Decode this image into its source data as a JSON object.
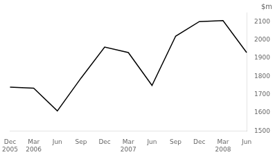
{
  "chart_data": {
    "type": "line",
    "ylabel": "$m",
    "categories": [
      "Dec\n2005",
      "Mar\n2006",
      "Jun",
      "Sep",
      "Dec",
      "Mar\n2007",
      "Jun",
      "Sep",
      "Dec",
      "Mar\n2008",
      "Jun"
    ],
    "values": [
      1740,
      1735,
      1610,
      1790,
      1960,
      1930,
      1750,
      2020,
      2100,
      2105,
      1930
    ],
    "color": "#000000",
    "ylim": [
      1500,
      2150
    ],
    "yticks": [
      1500,
      1600,
      1700,
      1800,
      1900,
      2000,
      2100
    ],
    "grid": false
  }
}
